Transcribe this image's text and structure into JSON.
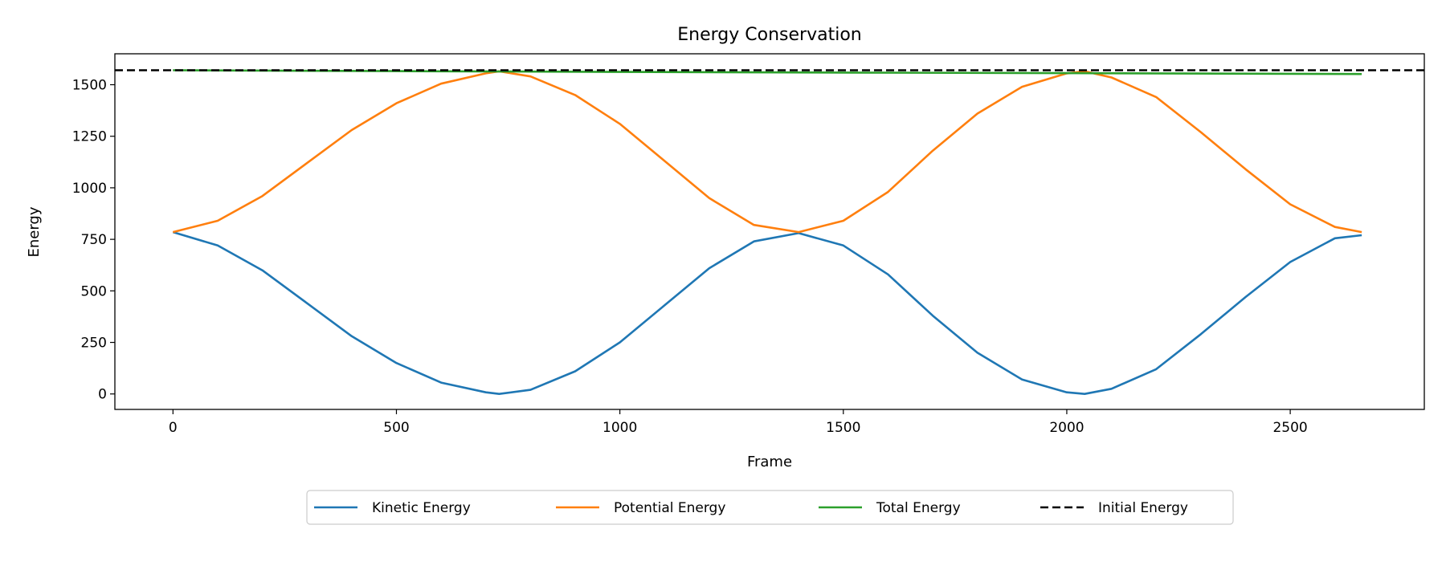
{
  "chart_data": {
    "type": "line",
    "title": "Energy Conservation",
    "xlabel": "Frame",
    "ylabel": "Energy",
    "xlim": [
      -130,
      2800
    ],
    "ylim": [
      -75,
      1650
    ],
    "xticks": [
      0,
      500,
      1000,
      1500,
      2000,
      2500
    ],
    "yticks": [
      0,
      250,
      500,
      750,
      1000,
      1250,
      1500
    ],
    "grid": false,
    "legend": "below-center",
    "series": [
      {
        "name": "Kinetic Energy",
        "color": "#1f77b4",
        "style": "solid",
        "x": [
          0,
          100,
          200,
          300,
          400,
          500,
          600,
          700,
          730,
          800,
          900,
          1000,
          1100,
          1200,
          1300,
          1400,
          1500,
          1600,
          1700,
          1800,
          1900,
          2000,
          2040,
          2100,
          2200,
          2300,
          2400,
          2500,
          2600,
          2660
        ],
        "y": [
          785,
          720,
          600,
          440,
          280,
          150,
          55,
          8,
          0,
          20,
          110,
          250,
          430,
          610,
          740,
          780,
          720,
          580,
          380,
          200,
          70,
          8,
          0,
          25,
          120,
          290,
          470,
          640,
          755,
          770
        ]
      },
      {
        "name": "Potential Energy",
        "color": "#ff7f0e",
        "style": "solid",
        "x": [
          0,
          100,
          200,
          300,
          400,
          500,
          600,
          700,
          730,
          800,
          900,
          1000,
          1100,
          1200,
          1300,
          1400,
          1500,
          1600,
          1700,
          1800,
          1900,
          2000,
          2040,
          2100,
          2200,
          2300,
          2400,
          2500,
          2600,
          2660
        ],
        "y": [
          785,
          840,
          960,
          1120,
          1280,
          1410,
          1505,
          1555,
          1565,
          1540,
          1450,
          1310,
          1130,
          950,
          820,
          785,
          840,
          980,
          1180,
          1360,
          1490,
          1555,
          1565,
          1535,
          1440,
          1270,
          1090,
          920,
          810,
          785
        ]
      },
      {
        "name": "Total Energy",
        "color": "#2ca02c",
        "style": "solid",
        "x": [
          0,
          500,
          1000,
          1500,
          2000,
          2660
        ],
        "y": [
          1570,
          1566,
          1562,
          1559,
          1556,
          1552
        ]
      },
      {
        "name": "Initial Energy",
        "color": "#000000",
        "style": "dashed",
        "x": [
          -130,
          2800
        ],
        "y": [
          1570,
          1570
        ]
      }
    ]
  }
}
